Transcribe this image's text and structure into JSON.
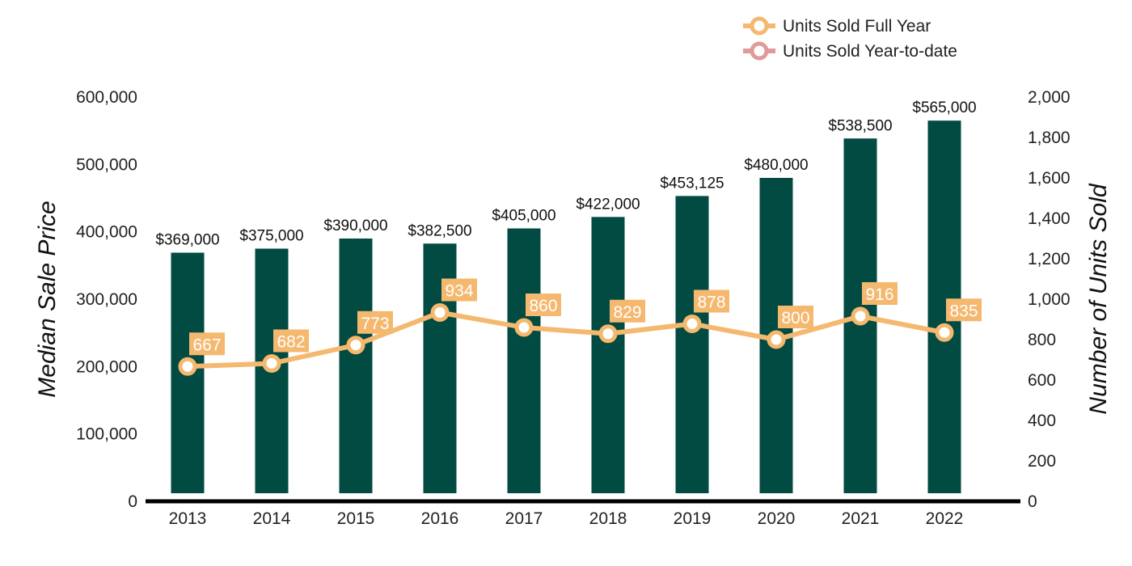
{
  "chart_data": {
    "type": "bar+line",
    "title": "",
    "categories": [
      "2013",
      "2014",
      "2015",
      "2016",
      "2017",
      "2018",
      "2019",
      "2020",
      "2021",
      "2022"
    ],
    "bars": {
      "name": "Median Sale Price",
      "values": [
        369000,
        375000,
        390000,
        382500,
        405000,
        422000,
        453125,
        480000,
        538500,
        565000
      ],
      "labels": [
        "$369,000",
        "$375,000",
        "$390,000",
        "$382,500",
        "$405,000",
        "$422,000",
        "$453,125",
        "$480,000",
        "$538,500",
        "$565,000"
      ],
      "color": "#024b43"
    },
    "line": {
      "name": "Units Sold Full Year",
      "values": [
        667,
        682,
        773,
        934,
        860,
        829,
        878,
        800,
        916,
        835
      ],
      "labels": [
        "667",
        "682",
        "773",
        "934",
        "860",
        "829",
        "878",
        "800",
        "916",
        "835"
      ],
      "color": "#f5b86f"
    },
    "legend": [
      {
        "label": "Units Sold Full Year",
        "color": "#f5b86f"
      },
      {
        "label": "Units Sold Year-to-date",
        "color": "#e09a9a"
      }
    ],
    "legend_position": "top-right",
    "y_left": {
      "label": "Median Sale Price",
      "range": [
        0,
        600000
      ],
      "ticks": [
        0,
        100000,
        200000,
        300000,
        400000,
        500000,
        600000
      ],
      "tick_labels": [
        "0",
        "100,000",
        "200,000",
        "300,000",
        "400,000",
        "500,000",
        "600,000"
      ]
    },
    "y_right": {
      "label": "Number of Units Sold",
      "range": [
        0,
        2000
      ],
      "ticks": [
        0,
        200,
        400,
        600,
        800,
        1000,
        1200,
        1400,
        1600,
        1800,
        2000
      ],
      "tick_labels": [
        "0",
        "200",
        "400",
        "600",
        "800",
        "1,000",
        "1,200",
        "1,400",
        "1,600",
        "1,800",
        "2,000"
      ]
    },
    "grid": false
  }
}
